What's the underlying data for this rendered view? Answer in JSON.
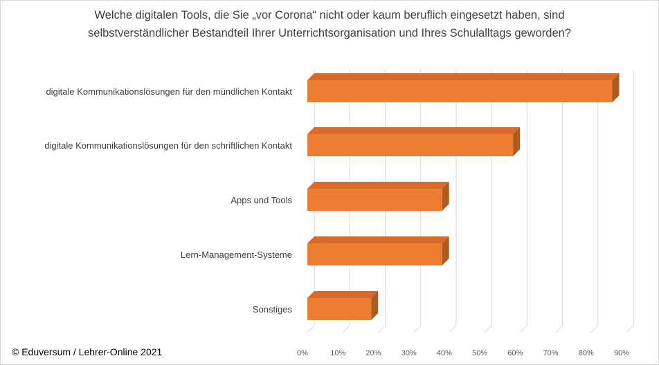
{
  "chart_data": {
    "type": "bar",
    "orientation": "horizontal",
    "style": "3d",
    "title_lines": [
      "Welche digitalen Tools, die Sie „vor Corona“ nicht oder kaum beruflich eingesetzt haben, sind",
      "selbstverständlicher Bestandteil Ihrer Unterrichtsorganisation und Ihres Schulalltags geworden?"
    ],
    "categories": [
      "digitale Kommunikationslösungen für den mündlichen Kontakt",
      "digitale Kommunikationslösungen für den schriftlichen Kontakt",
      "Apps und Tools",
      "Lern-Management-Systeme",
      "Sonstiges"
    ],
    "values": [
      86,
      58,
      38,
      38,
      18
    ],
    "value_unit": "%",
    "xlim": [
      0,
      90
    ],
    "x_ticks": [
      "0%",
      "10%",
      "20%",
      "30%",
      "40%",
      "50%",
      "60%",
      "70%",
      "80%",
      "90%"
    ],
    "grid": "vertical",
    "legend": "none",
    "bar_color": "#ED7D31",
    "bar_top_color": "#D9692A",
    "bar_side_color": "#AE5A21",
    "grid_color": "#d9d9d9"
  },
  "footer": {
    "copyright": "© Eduversum / Lehrer-Online 2021"
  }
}
